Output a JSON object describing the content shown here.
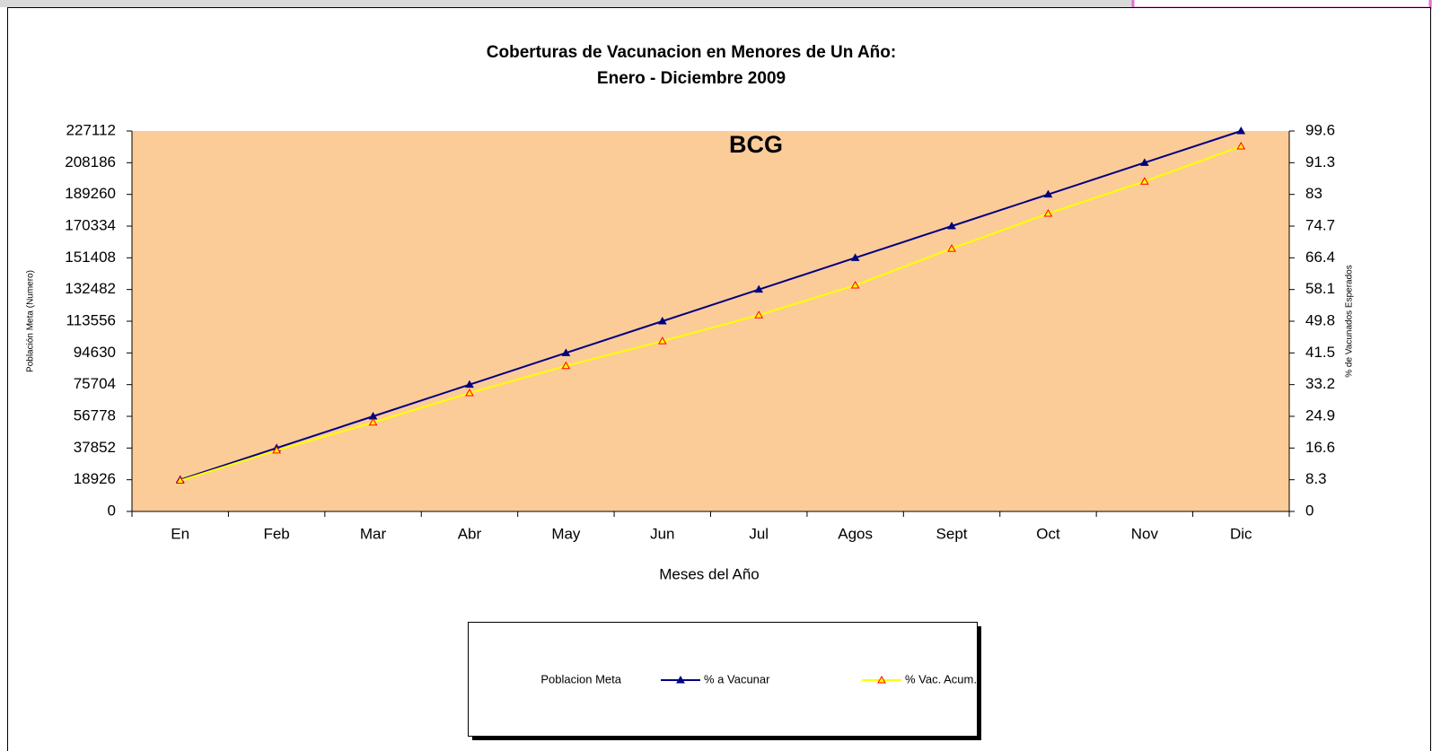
{
  "chart_data": {
    "type": "line",
    "title": "Coberturas de Vacunacion en Menores de Un Año:",
    "subtitle": "Enero - Diciembre 2009",
    "annotation": "BCG",
    "x_label": "Meses del Año",
    "y_label": "Población Meta (Numero)",
    "y2_label": "% de Vacunados Esperados",
    "categories": [
      "En",
      "Feb",
      "Mar",
      "Abr",
      "May",
      "Jun",
      "Jul",
      "Agos",
      "Sept",
      "Oct",
      "Nov",
      "Dic"
    ],
    "ylim": [
      0,
      227112
    ],
    "yticks": [
      0,
      18926,
      37852,
      56778,
      75704,
      94630,
      113556,
      132482,
      151408,
      170334,
      189260,
      208186,
      227112
    ],
    "y2lim": [
      0,
      99.6
    ],
    "y2ticks": [
      0,
      8.3,
      16.6,
      24.9,
      33.2,
      41.5,
      49.8,
      58.1,
      66.4,
      74.7,
      83,
      91.3,
      99.6
    ],
    "grid": false,
    "series": [
      {
        "name": "Poblacion Meta",
        "values": [
          null,
          null,
          null,
          null,
          null,
          null,
          null,
          null,
          null,
          null,
          null,
          null
        ]
      },
      {
        "name": "% a Vacunar",
        "color": "#000080",
        "marker_color": "#000080",
        "values": [
          18926,
          37852,
          56778,
          75704,
          94630,
          113556,
          132482,
          151408,
          170334,
          189260,
          208186,
          227112
        ]
      },
      {
        "name": "% Vac. Acum.",
        "color": "#ffff00",
        "marker_color": "#ff0000",
        "axis": "y2",
        "values": [
          8.1,
          16.0,
          23.3,
          31.0,
          38.1,
          44.6,
          51.4,
          59.2,
          68.8,
          78.0,
          86.4,
          95.6
        ]
      }
    ]
  }
}
